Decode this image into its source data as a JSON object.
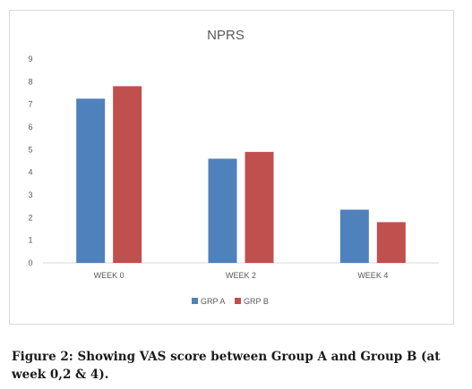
{
  "chart_data": {
    "type": "bar",
    "title": "NPRS",
    "categories": [
      "WEEK 0",
      "WEEK 2",
      "WEEK 4"
    ],
    "series": [
      {
        "name": "GRP A",
        "values": [
          7.25,
          4.6,
          2.35
        ],
        "color": "#4f81bd"
      },
      {
        "name": "GRP B",
        "values": [
          7.8,
          4.9,
          1.8
        ],
        "color": "#c0504d"
      }
    ],
    "ylim": [
      0,
      9
    ],
    "yticks": [
      "0",
      "1",
      "2",
      "3",
      "4",
      "5",
      "6",
      "7",
      "8",
      "9"
    ],
    "grid": false,
    "legend_position": "bottom"
  },
  "caption": "Figure 2: Showing VAS score between Group A and Group B (at week 0,2 & 4)."
}
